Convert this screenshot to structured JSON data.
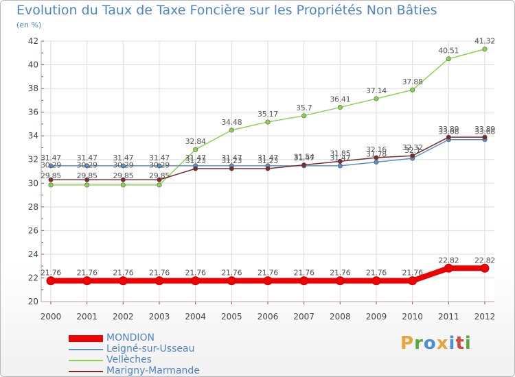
{
  "header": {
    "title": "Evolution du Taux de Taxe Foncière sur les Propriétés Non Bâties",
    "unit": "(en %)"
  },
  "logo": {
    "text": "Proxiti"
  },
  "chart_data": {
    "type": "line",
    "title": "Evolution du Taux de Taxe Foncière sur les Propriétés Non Bâties",
    "ylabel": "(en %)",
    "xlabel": "",
    "ylim": [
      20,
      42
    ],
    "yticks": [
      "20",
      "22",
      "24",
      "26",
      "28",
      "30",
      "32",
      "34",
      "36",
      "38",
      "40",
      "42"
    ],
    "categories": [
      "2000",
      "2001",
      "2002",
      "2003",
      "2004",
      "2005",
      "2006",
      "2007",
      "2008",
      "2009",
      "2010",
      "2011",
      "2012"
    ],
    "grid": true,
    "legend_position": "bottom-left",
    "series": [
      {
        "name": "MONDION",
        "color": "#ee0000",
        "values": [
          21.76,
          21.76,
          21.76,
          21.76,
          21.76,
          21.76,
          21.76,
          21.76,
          21.76,
          21.76,
          21.76,
          22.82,
          22.82
        ],
        "labels": [
          "21.76",
          "21.76",
          "21.76",
          "21.76",
          "21.76",
          "21.76",
          "21.76",
          "21.76",
          "21.76",
          "21.76",
          "21.76",
          "22.82",
          "22.82"
        ]
      },
      {
        "name": "Leigné-sur-Usseau",
        "color": "#5b8ec8",
        "values": [
          31.47,
          31.47,
          31.47,
          31.47,
          31.47,
          31.47,
          31.47,
          31.47,
          31.47,
          31.78,
          32.1,
          33.68,
          33.68
        ],
        "labels": [
          "31.47",
          "31.47",
          "31.47",
          "31.47",
          "31.47",
          "31.47",
          "31.47",
          "31.47",
          "31.47",
          "31.78",
          "32.1",
          "33.68",
          "33.68"
        ]
      },
      {
        "name": "Vellèches",
        "color": "#8dd24d",
        "values": [
          29.85,
          29.85,
          29.85,
          29.85,
          32.84,
          34.48,
          35.17,
          35.7,
          36.41,
          37.14,
          37.88,
          40.51,
          41.32
        ],
        "labels": [
          "29.85",
          "29.85",
          "29.85",
          "29.85",
          "32.84",
          "34.48",
          "35.17",
          "35.7",
          "36.41",
          "37.14",
          "37.88",
          "40.51",
          "41.32"
        ]
      },
      {
        "name": "Marigny-Marmande",
        "color": "#7a2a2a",
        "values": [
          30.29,
          30.29,
          30.29,
          30.29,
          31.23,
          31.23,
          31.23,
          31.54,
          31.85,
          32.16,
          32.32,
          33.89,
          33.89
        ],
        "labels": [
          "30.29",
          "30.29",
          "30.29",
          "30.29",
          "31.23",
          "31.23",
          "31.23",
          "31.54",
          "31.85",
          "32.16",
          "32.32",
          "33.89",
          "33.89"
        ]
      }
    ]
  }
}
